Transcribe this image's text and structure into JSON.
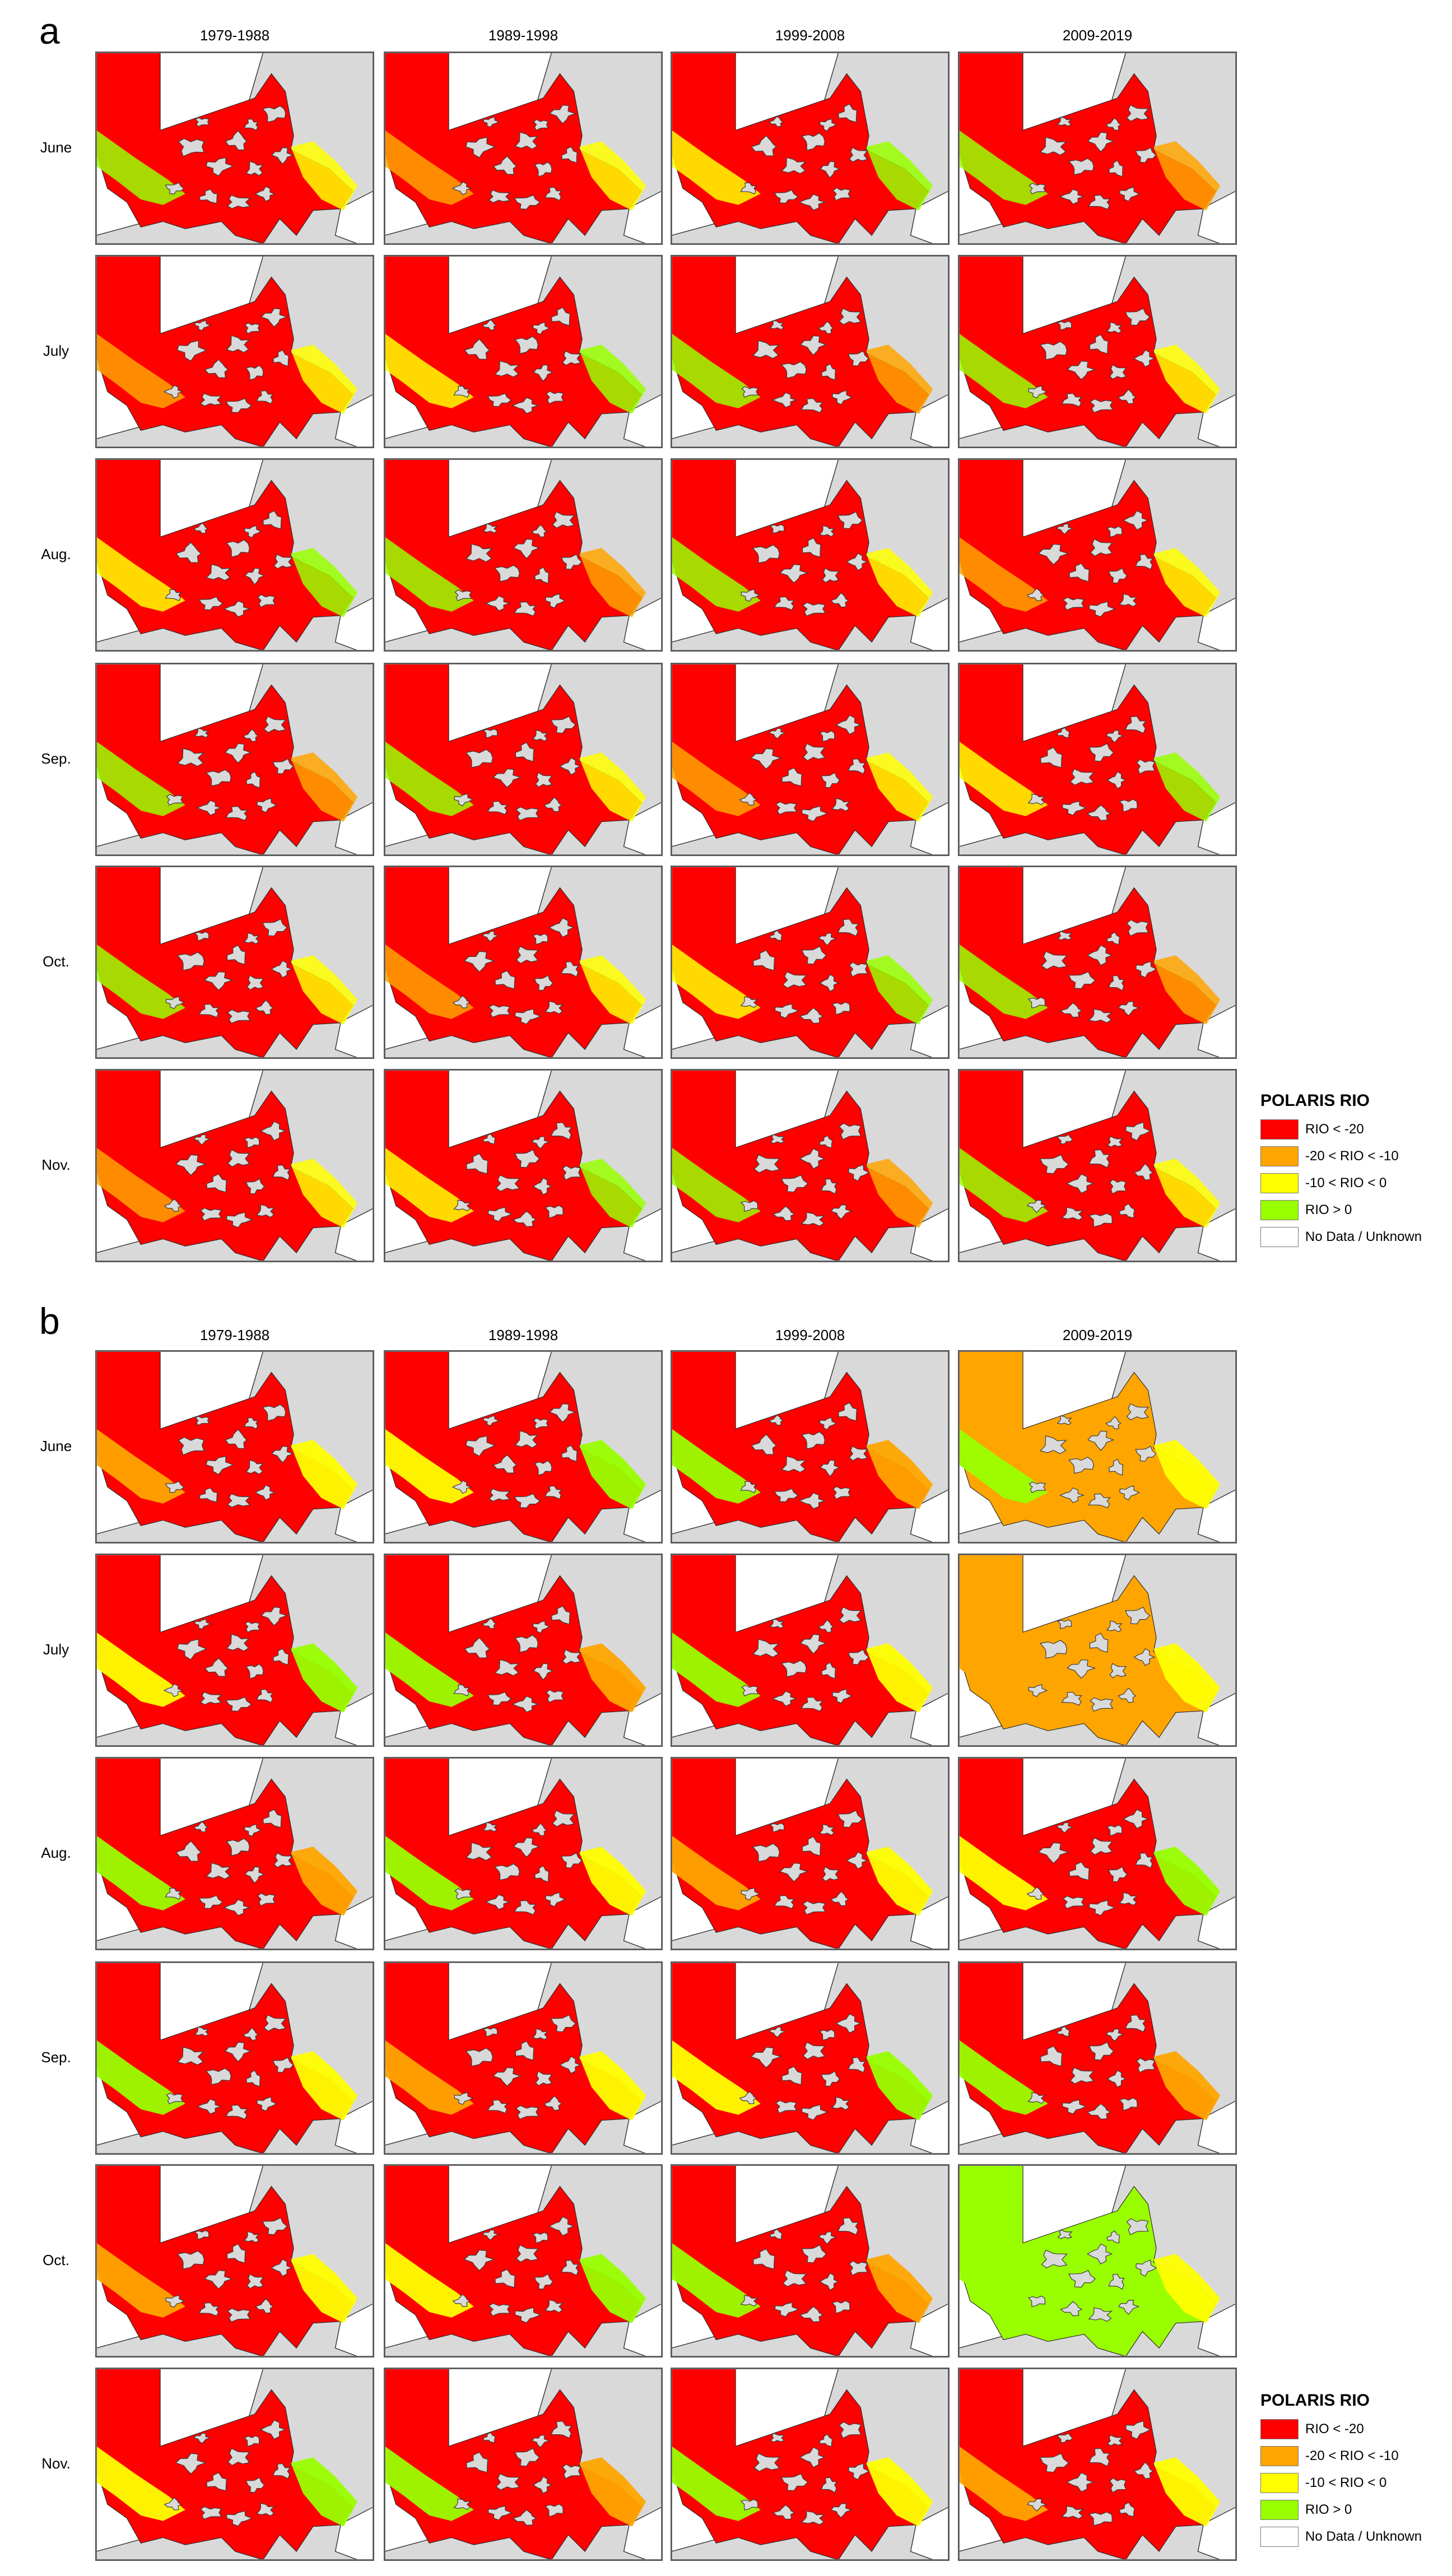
{
  "figure": {
    "columns": [
      "1979-1988",
      "1989-1998",
      "1999-2008",
      "2009-2019"
    ],
    "rows": [
      "June",
      "July",
      "Aug.",
      "Sep.",
      "Oct.",
      "Nov."
    ],
    "legend": {
      "title": "POLARIS RIO",
      "items": [
        {
          "label": "RIO < -20",
          "color": "#ff0000"
        },
        {
          "label": "-20 < RIO < -10",
          "color": "#ffa500"
        },
        {
          "label": "-10 < RIO < 0",
          "color": "#ffff00"
        },
        {
          "label": "RIO > 0",
          "color": "#99ff00"
        },
        {
          "label": "No Data / Unknown",
          "color": "#ffffff"
        }
      ]
    },
    "colors": {
      "land": "#d9d9d9",
      "coast": "#3a3a3a",
      "no_data": "#ffffff",
      "red": "#ff0000",
      "orange": "#ffa500",
      "yellow": "#ffff00",
      "green": "#99ff00"
    },
    "panels": [
      {
        "label": "a",
        "maps": [
          [
            "red",
            "red",
            "red",
            "red"
          ],
          [
            "red",
            "red",
            "red",
            "red"
          ],
          [
            "red",
            "red",
            "red",
            "red"
          ],
          [
            "red",
            "red",
            "red",
            "red"
          ],
          [
            "red",
            "red",
            "red",
            "red"
          ],
          [
            "red",
            "red",
            "red",
            "red"
          ]
        ]
      },
      {
        "label": "b",
        "maps": [
          [
            "red",
            "red",
            "red",
            "orange"
          ],
          [
            "red",
            "red",
            "red",
            "orange"
          ],
          [
            "red",
            "red",
            "red",
            "red"
          ],
          [
            "red",
            "red",
            "red",
            "red"
          ],
          [
            "red",
            "red",
            "red",
            "green"
          ],
          [
            "red",
            "red",
            "red",
            "red"
          ]
        ]
      }
    ]
  }
}
